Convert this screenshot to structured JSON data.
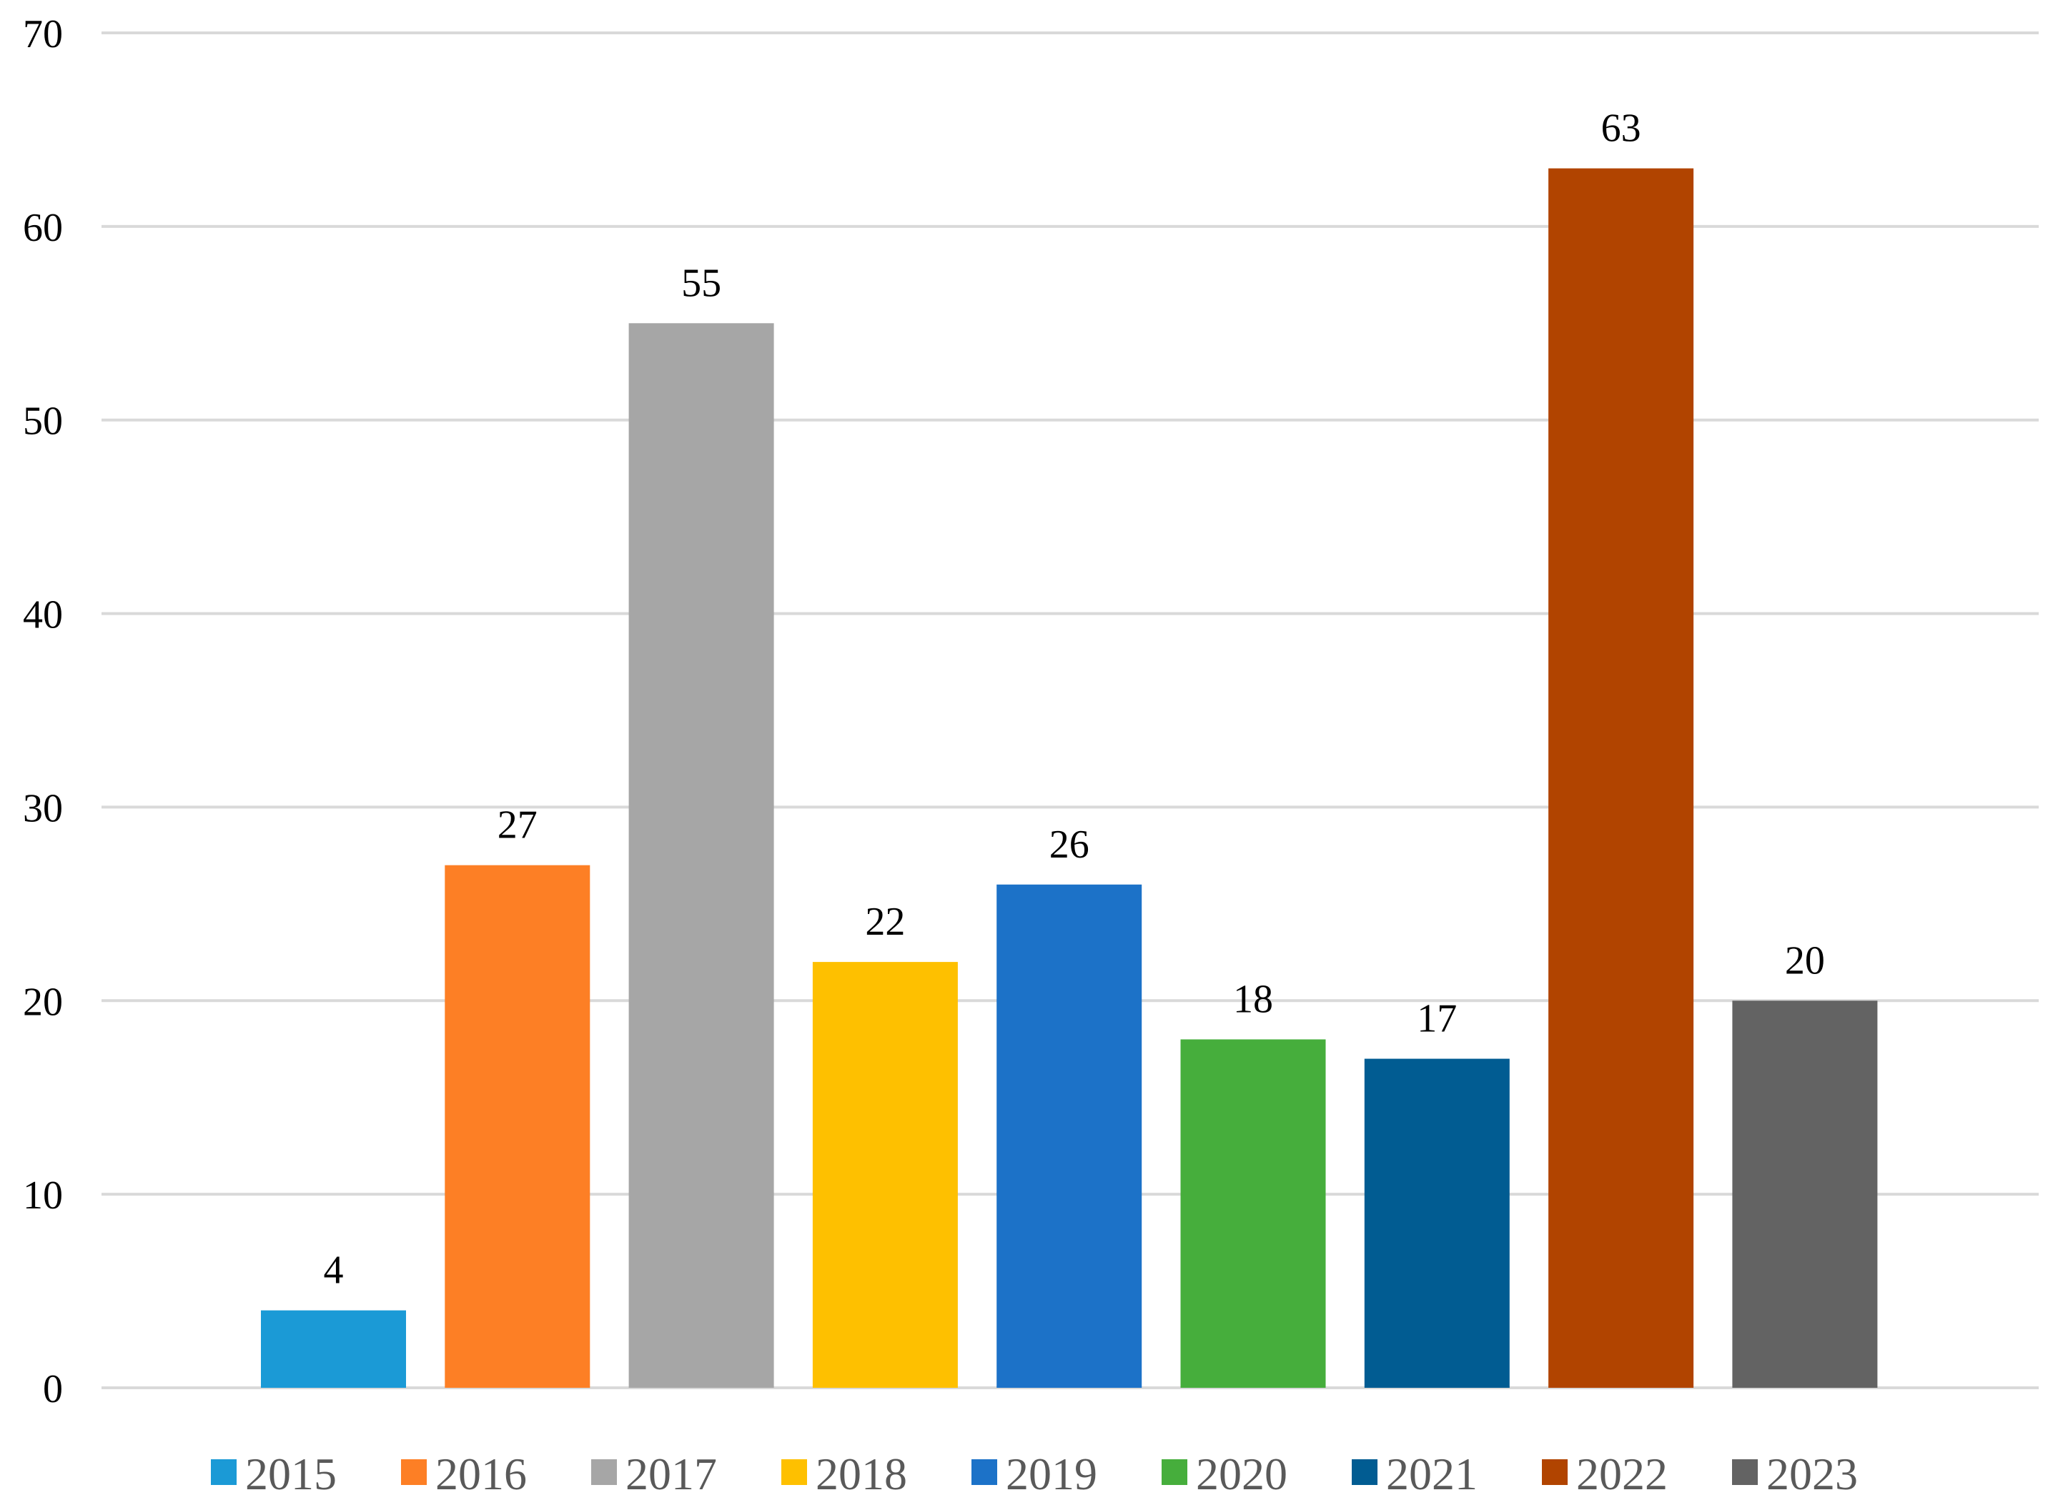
{
  "chart_data": {
    "type": "bar",
    "title": "",
    "xlabel": "",
    "ylabel": "",
    "categories": [
      "2015",
      "2016",
      "2017",
      "2018",
      "2019",
      "2020",
      "2021",
      "2022",
      "2023"
    ],
    "values": [
      4,
      27,
      55,
      22,
      26,
      18,
      17,
      63,
      20
    ],
    "colors": [
      "#1b9ad6",
      "#fd7f25",
      "#a6a6a6",
      "#fec000",
      "#1c72c8",
      "#46ae3c",
      "#015c92",
      "#b14400",
      "#636363"
    ],
    "ylim": [
      0,
      70
    ],
    "yticks": [
      "0",
      "10",
      "20",
      "30",
      "40",
      "50",
      "60",
      "70"
    ],
    "data_labels": [
      "4",
      "27",
      "55",
      "22",
      "26",
      "18",
      "17",
      "63",
      "20"
    ],
    "legend": {
      "position": "bottom",
      "entries": [
        "2015",
        "2016",
        "2017",
        "2018",
        "2019",
        "2020",
        "2021",
        "2022",
        "2023"
      ]
    },
    "grid": true
  }
}
